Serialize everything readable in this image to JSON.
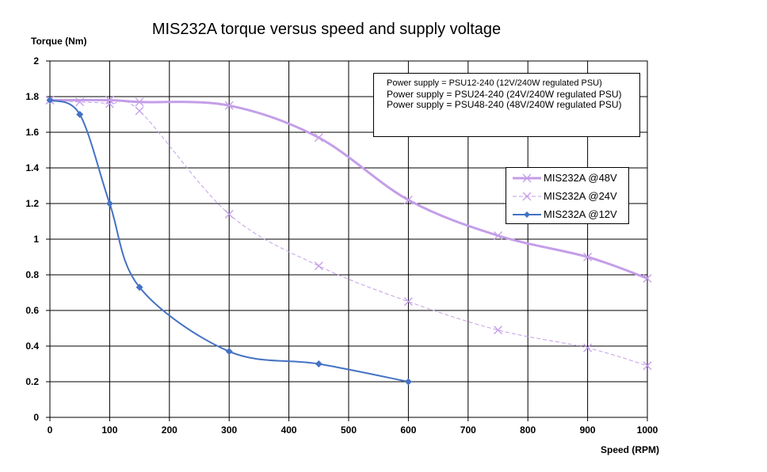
{
  "chart_data": {
    "type": "line",
    "title": "MIS232A torque versus speed and supply voltage",
    "ylabel": "Torque (Nm)",
    "xlabel": "Speed (RPM)",
    "xlim": [
      0,
      1000
    ],
    "ylim": [
      0,
      2
    ],
    "x_ticks": [
      "0",
      "100",
      "200",
      "300",
      "400",
      "500",
      "600",
      "700",
      "800",
      "900",
      "1000"
    ],
    "y_ticks": [
      "0",
      "0.2",
      "0.4",
      "0.6",
      "0.8",
      "1",
      "1.2",
      "1.4",
      "1.6",
      "1.8",
      "2"
    ],
    "grid": true,
    "legend_position": "right",
    "series": [
      {
        "name": "MIS232A @48V",
        "color": "#c49ee8",
        "style": "solid-thick",
        "marker": "x",
        "points": [
          [
            0,
            1.78
          ],
          [
            100,
            1.78
          ],
          [
            150,
            1.77
          ],
          [
            300,
            1.75
          ],
          [
            450,
            1.57
          ],
          [
            600,
            1.22
          ],
          [
            750,
            1.02
          ],
          [
            900,
            0.9
          ],
          [
            1000,
            0.78
          ]
        ]
      },
      {
        "name": "MIS232A @24V",
        "color": "#c49ee8",
        "style": "dashed",
        "marker": "x",
        "points": [
          [
            0,
            1.78
          ],
          [
            50,
            1.77
          ],
          [
            100,
            1.76
          ],
          [
            150,
            1.72
          ],
          [
            300,
            1.14
          ],
          [
            450,
            0.85
          ],
          [
            600,
            0.65
          ],
          [
            750,
            0.49
          ],
          [
            900,
            0.39
          ],
          [
            1000,
            0.29
          ]
        ]
      },
      {
        "name": "MIS232A @12V",
        "color": "#4472c4",
        "style": "solid",
        "marker": "diamond",
        "points": [
          [
            0,
            1.78
          ],
          [
            50,
            1.7
          ],
          [
            100,
            1.2
          ],
          [
            150,
            0.73
          ],
          [
            300,
            0.37
          ],
          [
            450,
            0.3
          ],
          [
            600,
            0.2
          ]
        ]
      }
    ],
    "annotations": [
      "Power supply = PSU12-240 (12V/240W regulated PSU)",
      "Power supply = PSU24-240  (24V/240W regulated PSU)",
      "Power supply = PSU48-240  (48V/240W regulated PSU)"
    ]
  }
}
